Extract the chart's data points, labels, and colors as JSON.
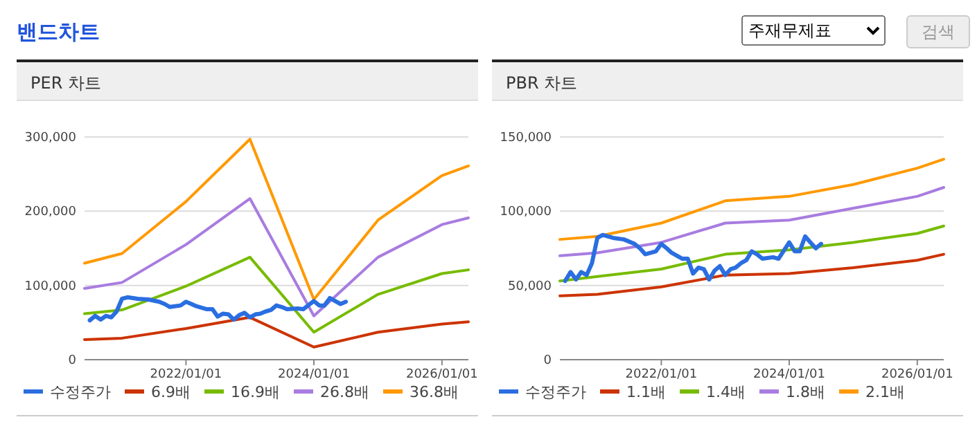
{
  "chart_data": [
    {
      "type": "line",
      "title": "PER 차트",
      "annotations": [
        "밴드차트"
      ],
      "xlim": [
        "2020-06",
        "2026-06"
      ],
      "xticks": [
        {
          "value": "2022-01-01",
          "label": "2022/01/01"
        },
        {
          "value": "2024-01-01",
          "label": "2024/01/01"
        },
        {
          "value": "2026-01-01",
          "label": "2026/01/01"
        }
      ],
      "ylim": [
        0,
        300000
      ],
      "yticks": [
        {
          "value": 0,
          "label": "0"
        },
        {
          "value": 100000,
          "label": "100,000"
        },
        {
          "value": 200000,
          "label": "200,000"
        },
        {
          "value": 300000,
          "label": "300,000"
        }
      ],
      "grid": "y",
      "legend": "bottom",
      "marker": "none",
      "line_style": "solid",
      "series": [
        {
          "name": "수정주가",
          "color": "#2a6ee0",
          "x": [
            "2020-07",
            "2020-08",
            "2020-09",
            "2020-10",
            "2020-11",
            "2020-12",
            "2021-01",
            "2021-02",
            "2021-04",
            "2021-06",
            "2021-08",
            "2021-09",
            "2021-10",
            "2021-12",
            "2022-01",
            "2022-02",
            "2022-03",
            "2022-05",
            "2022-06",
            "2022-07",
            "2022-08",
            "2022-09",
            "2022-10",
            "2022-11",
            "2022-12",
            "2023-01",
            "2023-02",
            "2023-03",
            "2023-04",
            "2023-05",
            "2023-06",
            "2023-07",
            "2023-08",
            "2023-10",
            "2023-11",
            "2024-01",
            "2024-02",
            "2024-03",
            "2024-04",
            "2024-05",
            "2024-06",
            "2024-07"
          ],
          "values": [
            53000,
            59000,
            54000,
            59000,
            57000,
            65000,
            82000,
            84000,
            82000,
            81000,
            78000,
            75000,
            71000,
            73000,
            78000,
            75000,
            72000,
            68000,
            68000,
            58000,
            62000,
            61000,
            54000,
            60000,
            63000,
            57000,
            61000,
            62000,
            65000,
            67000,
            73000,
            71000,
            68000,
            69000,
            68000,
            79000,
            73000,
            73000,
            83000,
            79000,
            75000,
            78000
          ]
        },
        {
          "name": "6.9배",
          "color": "#cc3300",
          "x": [
            "2020-06",
            "2021-01",
            "2022-01",
            "2023-01",
            "2024-01",
            "2025-01",
            "2026-01",
            "2026-06"
          ],
          "values": [
            27000,
            29000,
            42000,
            57000,
            17000,
            37000,
            48000,
            51000
          ]
        },
        {
          "name": "16.9배",
          "color": "#77bb00",
          "x": [
            "2020-06",
            "2021-01",
            "2022-01",
            "2023-01",
            "2024-01",
            "2025-01",
            "2026-01",
            "2026-06"
          ],
          "values": [
            62000,
            67000,
            99000,
            138000,
            37000,
            88000,
            116000,
            121000
          ]
        },
        {
          "name": "26.8배",
          "color": "#a87ce0",
          "x": [
            "2020-06",
            "2021-01",
            "2022-01",
            "2023-01",
            "2024-01",
            "2025-01",
            "2026-01",
            "2026-06"
          ],
          "values": [
            96000,
            104000,
            155000,
            217000,
            59000,
            138000,
            182000,
            191000
          ]
        },
        {
          "name": "36.8배",
          "color": "#ff9900",
          "x": [
            "2020-06",
            "2021-01",
            "2022-01",
            "2023-01",
            "2024-01",
            "2025-01",
            "2026-01",
            "2026-06"
          ],
          "values": [
            130000,
            143000,
            213000,
            297000,
            81000,
            188000,
            248000,
            261000
          ]
        }
      ]
    },
    {
      "type": "line",
      "title": "PBR 차트",
      "annotations": [
        "주재무제표",
        "검색"
      ],
      "xlim": [
        "2020-06",
        "2026-06"
      ],
      "xticks": [
        {
          "value": "2022-01-01",
          "label": "2022/01/01"
        },
        {
          "value": "2024-01-01",
          "label": "2024/01/01"
        },
        {
          "value": "2026-01-01",
          "label": "2026/01/01"
        }
      ],
      "ylim": [
        0,
        150000
      ],
      "yticks": [
        {
          "value": 0,
          "label": "0"
        },
        {
          "value": 50000,
          "label": "50,000"
        },
        {
          "value": 100000,
          "label": "100,000"
        },
        {
          "value": 150000,
          "label": "150,000"
        }
      ],
      "grid": "y",
      "legend": "bottom",
      "marker": "none",
      "line_style": "solid",
      "series": [
        {
          "name": "수정주가",
          "color": "#2a6ee0",
          "x": [
            "2020-07",
            "2020-08",
            "2020-09",
            "2020-10",
            "2020-11",
            "2020-12",
            "2021-01",
            "2021-02",
            "2021-04",
            "2021-06",
            "2021-08",
            "2021-09",
            "2021-10",
            "2021-12",
            "2022-01",
            "2022-02",
            "2022-03",
            "2022-05",
            "2022-06",
            "2022-07",
            "2022-08",
            "2022-09",
            "2022-10",
            "2022-11",
            "2022-12",
            "2023-01",
            "2023-02",
            "2023-03",
            "2023-04",
            "2023-05",
            "2023-06",
            "2023-07",
            "2023-08",
            "2023-10",
            "2023-11",
            "2024-01",
            "2024-02",
            "2024-03",
            "2024-04",
            "2024-05",
            "2024-06",
            "2024-07"
          ],
          "values": [
            53000,
            59000,
            54000,
            59000,
            57000,
            65000,
            82000,
            84000,
            82000,
            81000,
            78000,
            75000,
            71000,
            73000,
            78000,
            75000,
            72000,
            68000,
            68000,
            58000,
            62000,
            61000,
            54000,
            60000,
            63000,
            57000,
            61000,
            62000,
            65000,
            67000,
            73000,
            71000,
            68000,
            69000,
            68000,
            79000,
            73000,
            73000,
            83000,
            79000,
            75000,
            78000
          ]
        },
        {
          "name": "1.1배",
          "color": "#cc3300",
          "x": [
            "2020-06",
            "2021-01",
            "2022-01",
            "2023-01",
            "2024-01",
            "2025-01",
            "2026-01",
            "2026-06"
          ],
          "values": [
            43000,
            44000,
            49000,
            57000,
            58000,
            62000,
            67000,
            71000
          ]
        },
        {
          "name": "1.4배",
          "color": "#77bb00",
          "x": [
            "2020-06",
            "2021-01",
            "2022-01",
            "2023-01",
            "2024-01",
            "2025-01",
            "2026-01",
            "2026-06"
          ],
          "values": [
            53000,
            56000,
            61000,
            71000,
            74000,
            79000,
            85000,
            90000
          ]
        },
        {
          "name": "1.8배",
          "color": "#a87ce0",
          "x": [
            "2020-06",
            "2021-01",
            "2022-01",
            "2023-01",
            "2024-01",
            "2025-01",
            "2026-01",
            "2026-06"
          ],
          "values": [
            70000,
            72000,
            79000,
            92000,
            94000,
            102000,
            110000,
            116000
          ]
        },
        {
          "name": "2.1배",
          "color": "#ff9900",
          "x": [
            "2020-06",
            "2021-01",
            "2022-01",
            "2023-01",
            "2024-01",
            "2025-01",
            "2026-01",
            "2026-06"
          ],
          "values": [
            81000,
            83000,
            92000,
            107000,
            110000,
            118000,
            129000,
            135000
          ]
        }
      ]
    }
  ]
}
